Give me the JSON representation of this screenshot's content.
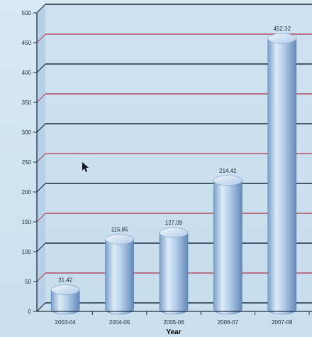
{
  "chart_data": {
    "type": "bar",
    "title": "",
    "xlabel": "Year",
    "ylabel": "",
    "categories": [
      "2003-04",
      "2004-05",
      "2005-06",
      "2006-07",
      "2007-08"
    ],
    "values": [
      31.42,
      115.85,
      127.09,
      214.42,
      452.32
    ],
    "value_labels": [
      "31.42",
      "115.85",
      "127.09",
      "214.42",
      "452.32"
    ],
    "ylim": [
      0,
      500
    ],
    "yticks": [
      "0",
      "50",
      "100",
      "150",
      "200",
      "250",
      "300",
      "350",
      "400",
      "450",
      "500"
    ],
    "grid": true,
    "legend": "none",
    "bar_style": "3d-cylinder",
    "colors": {
      "background": "#d3e6f2",
      "plot_face": "#c5dced",
      "gridline_dark": "#1f2f44",
      "gridline_red": "#b35060",
      "bar_light": "#e8f2fb",
      "bar_mid": "#a7c6e6",
      "bar_dark": "#6e93c0",
      "text": "#1c2a3c"
    }
  }
}
